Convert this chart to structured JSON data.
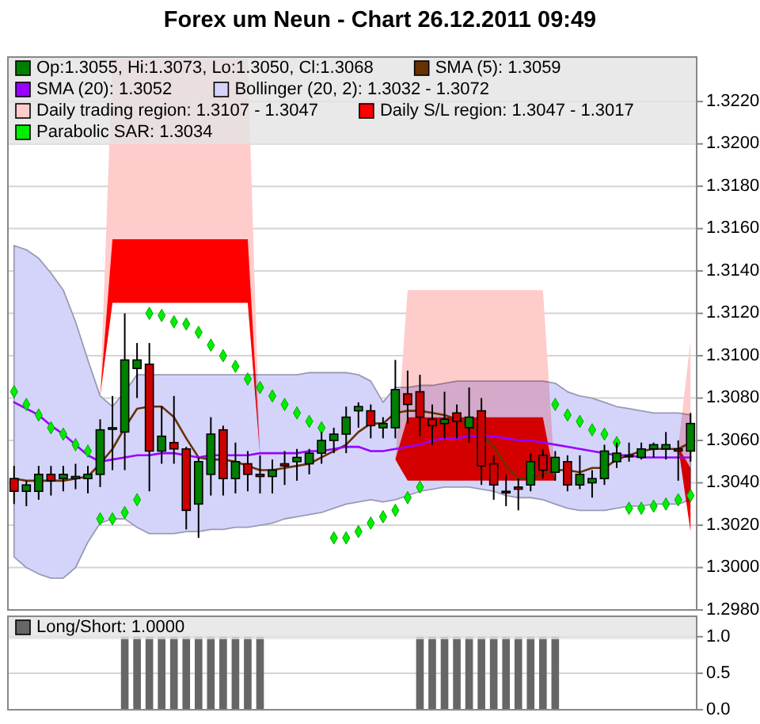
{
  "chart_data": [
    {
      "type": "candlestick",
      "title": "Forex um Neun - Chart 26.12.2011 09:49",
      "categories": [
        null,
        null,
        null,
        null,
        null,
        null,
        null,
        null,
        null,
        null,
        null,
        null,
        null,
        null,
        null,
        null,
        null,
        null,
        null,
        null,
        null,
        null,
        null,
        null,
        null,
        null,
        null,
        null,
        null,
        null,
        null,
        null,
        null,
        null,
        null,
        null,
        null,
        null,
        null,
        null,
        null,
        null,
        null,
        null,
        null,
        null,
        null,
        null,
        null,
        null,
        null,
        null,
        null,
        null,
        null,
        null
      ],
      "ylim": [
        1.298,
        1.3241
      ],
      "yticks": [
        {
          "value": 1.298,
          "label": "1.2980"
        },
        {
          "value": 1.3,
          "label": "1.3000"
        },
        {
          "value": 1.302,
          "label": "1.3020"
        },
        {
          "value": 1.304,
          "label": "1.3040"
        },
        {
          "value": 1.306,
          "label": "1.3060"
        },
        {
          "value": 1.308,
          "label": "1.3080"
        },
        {
          "value": 1.31,
          "label": "1.3100"
        },
        {
          "value": 1.312,
          "label": "1.3120"
        },
        {
          "value": 1.314,
          "label": "1.3140"
        },
        {
          "value": 1.316,
          "label": "1.3160"
        },
        {
          "value": 1.318,
          "label": "1.3180"
        },
        {
          "value": 1.32,
          "label": "1.3200"
        },
        {
          "value": 1.322,
          "label": "1.3220"
        }
      ],
      "grid": "y",
      "legend": "top left",
      "series": [
        {
          "name": "Op:1.3055, Hi:1.3073, Lo:1.3050, Cl:1.3068",
          "color": "#008000",
          "ohlc": [
            [
              1.3042,
              1.3048,
              1.303,
              1.3036
            ],
            [
              1.3036,
              1.3041,
              1.3029,
              1.3039
            ],
            [
              1.3036,
              1.3048,
              1.3032,
              1.3044
            ],
            [
              1.3044,
              1.3048,
              1.3034,
              1.3041
            ],
            [
              1.3042,
              1.3048,
              1.3036,
              1.3044
            ],
            [
              1.3042,
              1.3049,
              1.3037,
              1.3043
            ],
            [
              1.3042,
              1.3048,
              1.3035,
              1.3044
            ],
            [
              1.3044,
              1.307,
              1.3038,
              1.3065
            ],
            [
              1.3066,
              1.3081,
              1.3046,
              1.3066
            ],
            [
              1.3064,
              1.312,
              1.3046,
              1.3098
            ],
            [
              1.3094,
              1.3106,
              1.308,
              1.3098
            ],
            [
              1.3096,
              1.3106,
              1.3036,
              1.3055
            ],
            [
              1.3055,
              1.3076,
              1.3049,
              1.3062
            ],
            [
              1.3059,
              1.3081,
              1.3049,
              1.3056
            ],
            [
              1.3056,
              1.3057,
              1.3018,
              1.3027
            ],
            [
              1.303,
              1.3052,
              1.3014,
              1.305
            ],
            [
              1.3044,
              1.3071,
              1.3034,
              1.3063
            ],
            [
              1.3065,
              1.3067,
              1.3034,
              1.3042
            ],
            [
              1.3042,
              1.3059,
              1.3035,
              1.305
            ],
            [
              1.3049,
              1.3055,
              1.3036,
              1.3044
            ],
            [
              1.3044,
              1.3053,
              1.3035,
              1.3043
            ],
            [
              1.3043,
              1.3051,
              1.3035,
              1.3046
            ],
            [
              1.3049,
              1.3055,
              1.3039,
              1.3048
            ],
            [
              1.305,
              1.3056,
              1.3041,
              1.3052
            ],
            [
              1.3049,
              1.3056,
              1.3044,
              1.3054
            ],
            [
              1.3054,
              1.3064,
              1.3049,
              1.306
            ],
            [
              1.306,
              1.3066,
              1.3054,
              1.3063
            ],
            [
              1.3063,
              1.3076,
              1.3054,
              1.3071
            ],
            [
              1.3074,
              1.3078,
              1.3066,
              1.3076
            ],
            [
              1.3074,
              1.3077,
              1.3061,
              1.3067
            ],
            [
              1.3066,
              1.3071,
              1.3061,
              1.3068
            ],
            [
              1.3066,
              1.3098,
              1.3061,
              1.3084
            ],
            [
              1.3082,
              1.3093,
              1.3068,
              1.3077
            ],
            [
              1.3083,
              1.3091,
              1.3062,
              1.3071
            ],
            [
              1.307,
              1.3077,
              1.3058,
              1.3067
            ],
            [
              1.3068,
              1.3083,
              1.3061,
              1.307
            ],
            [
              1.3073,
              1.3077,
              1.3061,
              1.3069
            ],
            [
              1.3066,
              1.3085,
              1.3059,
              1.3071
            ],
            [
              1.3074,
              1.308,
              1.3039,
              1.3048
            ],
            [
              1.3049,
              1.3053,
              1.3032,
              1.3039
            ],
            [
              1.3036,
              1.3044,
              1.3029,
              1.3036
            ],
            [
              1.3038,
              1.3042,
              1.3027,
              1.3037
            ],
            [
              1.3039,
              1.3054,
              1.3036,
              1.305
            ],
            [
              1.3053,
              1.3056,
              1.3042,
              1.3046
            ],
            [
              1.3045,
              1.3055,
              1.3041,
              1.3052
            ],
            [
              1.305,
              1.3053,
              1.3036,
              1.3039
            ],
            [
              1.3039,
              1.3053,
              1.3037,
              1.3044
            ],
            [
              1.304,
              1.3046,
              1.3033,
              1.3042
            ],
            [
              1.3042,
              1.3058,
              1.3039,
              1.3055
            ],
            [
              1.305,
              1.3059,
              1.3047,
              1.3054
            ],
            [
              1.3053,
              1.3059,
              1.305,
              1.3053
            ],
            [
              1.3052,
              1.3059,
              1.3051,
              1.3056
            ],
            [
              1.3056,
              1.3059,
              1.3052,
              1.3058
            ],
            [
              1.3056,
              1.3064,
              1.3051,
              1.3058
            ],
            [
              1.3056,
              1.306,
              1.3041,
              1.3055
            ],
            [
              1.3055,
              1.3073,
              1.305,
              1.3068
            ]
          ],
          "colors": [
            "#cc0000",
            "#008000",
            "#008000",
            "#cc0000",
            "#008000",
            "#008000",
            "#008000",
            "#008000",
            "#008000",
            "#008000",
            "#008000",
            "#cc0000",
            "#008000",
            "#cc0000",
            "#cc0000",
            "#008000",
            "#008000",
            "#cc0000",
            "#008000",
            "#cc0000",
            "#cc0000",
            "#008000",
            "#cc0000",
            "#008000",
            "#008000",
            "#008000",
            "#008000",
            "#008000",
            "#008000",
            "#cc0000",
            "#008000",
            "#008000",
            "#cc0000",
            "#cc0000",
            "#cc0000",
            "#008000",
            "#cc0000",
            "#008000",
            "#cc0000",
            "#cc0000",
            "#cc0000",
            "#cc0000",
            "#008000",
            "#cc0000",
            "#008000",
            "#cc0000",
            "#008000",
            "#008000",
            "#008000",
            "#008000",
            "#008000",
            "#008000",
            "#008000",
            "#008000",
            "#cc0000",
            "#008000"
          ]
        },
        {
          "type": "line",
          "name": "SMA (5): 1.3059",
          "color": "#663300",
          "values": [
            1.3042,
            1.3041,
            1.3041,
            1.3041,
            1.3041,
            1.3042,
            1.3043,
            1.3049,
            1.3056,
            1.3066,
            1.3075,
            1.3076,
            1.3076,
            1.3071,
            1.3061,
            1.3052,
            1.3051,
            1.3051,
            1.305,
            1.3048,
            1.3046,
            1.3046,
            1.3047,
            1.3048,
            1.3049,
            1.3052,
            1.3055,
            1.3058,
            1.3064,
            1.3068,
            1.3068,
            1.3073,
            1.3074,
            1.3074,
            1.3073,
            1.3072,
            1.307,
            1.3068,
            1.3063,
            1.3057,
            1.3048,
            1.3042,
            1.3042,
            1.3044,
            1.3046,
            1.3046,
            1.3045,
            1.3047,
            1.3047,
            1.3051,
            1.3053,
            1.3055,
            1.3056,
            1.3056,
            1.3056,
            1.3059
          ]
        },
        {
          "type": "line",
          "name": "SMA (20): 1.3052",
          "color": "#9900ff",
          "values": [
            1.3078,
            1.3075,
            1.3072,
            1.3067,
            1.3063,
            1.3058,
            1.3053,
            1.305,
            1.3051,
            1.3052,
            1.3053,
            1.3053,
            1.3054,
            1.3054,
            1.3053,
            1.3052,
            1.3053,
            1.3053,
            1.3053,
            1.3053,
            1.3054,
            1.3054,
            1.3054,
            1.3054,
            1.3055,
            1.3055,
            1.3056,
            1.3057,
            1.3057,
            1.3055,
            1.3055,
            1.3056,
            1.3057,
            1.3058,
            1.306,
            1.3061,
            1.3061,
            1.3062,
            1.3062,
            1.3062,
            1.3061,
            1.306,
            1.306,
            1.3059,
            1.3058,
            1.3057,
            1.3056,
            1.3055,
            1.3054,
            1.3053,
            1.3053,
            1.3052,
            1.3052,
            1.3052,
            1.3052,
            1.3052
          ]
        },
        {
          "type": "area",
          "name": "Bollinger (20, 2): 1.3032 - 1.3072",
          "color": "#d4d4fb",
          "line_style": "solid",
          "values": [
            null,
            null,
            null,
            null,
            null,
            null,
            null,
            null,
            null,
            null,
            null,
            null,
            null,
            null,
            null,
            null,
            null,
            null,
            null,
            null,
            null,
            null,
            null,
            null,
            null,
            null,
            null,
            null,
            null,
            null,
            null,
            null,
            null,
            null,
            null,
            null,
            null,
            null,
            null,
            null,
            null,
            null,
            null,
            null,
            null,
            null,
            null,
            null,
            null,
            null,
            null,
            null,
            null,
            null,
            null,
            null
          ],
          "upper": [
            1.3152,
            1.315,
            1.3146,
            1.3139,
            1.3131,
            1.3116,
            1.3098,
            1.3081,
            1.3076,
            1.3083,
            1.3091,
            1.3091,
            1.3091,
            1.3091,
            1.3091,
            1.3091,
            1.3091,
            1.3091,
            1.3091,
            1.3091,
            1.3091,
            1.3091,
            1.3091,
            1.3091,
            1.3092,
            1.3092,
            1.3092,
            1.3092,
            1.3091,
            1.3088,
            1.3078,
            1.3085,
            1.3085,
            1.3086,
            1.3086,
            1.3087,
            1.3088,
            1.3088,
            1.3088,
            1.3088,
            1.3088,
            1.3088,
            1.3088,
            1.3088,
            1.3087,
            1.3083,
            1.3081,
            1.308,
            1.3078,
            1.3076,
            1.3075,
            1.3074,
            1.3073,
            1.3073,
            1.3073,
            1.3072
          ],
          "lower": [
            1.3005,
            1.3,
            1.2997,
            1.2995,
            1.2995,
            1.3,
            1.3012,
            1.3021,
            1.3023,
            1.3023,
            1.3019,
            1.3016,
            1.3016,
            1.3016,
            1.3017,
            1.3017,
            1.3018,
            1.3018,
            1.3019,
            1.3019,
            1.302,
            1.3021,
            1.3023,
            1.3024,
            1.3025,
            1.3026,
            1.3028,
            1.303,
            1.3031,
            1.3032,
            1.3031,
            1.3032,
            1.3034,
            1.3036,
            1.3037,
            1.3038,
            1.3038,
            1.3038,
            1.3037,
            1.3036,
            1.3034,
            1.3033,
            1.3033,
            1.3032,
            1.303,
            1.3028,
            1.3027,
            1.3027,
            1.3027,
            1.3028,
            1.3029,
            1.3029,
            1.303,
            1.303,
            1.303,
            1.3032
          ]
        },
        {
          "type": "area",
          "name": "Daily trading region: 1.3107 - 1.3047",
          "color": "#ffcccc",
          "values": [
            null,
            null,
            null,
            null,
            null,
            null,
            null,
            null,
            null,
            null,
            null,
            null,
            null,
            null,
            null,
            null,
            null,
            null,
            null,
            null,
            null,
            null,
            null,
            null,
            null,
            null,
            null,
            null,
            null,
            null,
            null,
            null,
            null,
            null,
            null,
            null,
            null,
            null,
            null,
            null,
            null,
            null,
            null,
            null,
            null,
            null,
            null,
            null,
            null,
            null,
            null,
            null,
            null,
            null,
            null,
            null
          ],
          "upper": [
            null,
            null,
            null,
            null,
            null,
            null,
            null,
            1.3081,
            1.324,
            1.324,
            1.324,
            1.324,
            1.324,
            1.324,
            1.324,
            1.324,
            1.324,
            1.324,
            1.324,
            1.324,
            1.3053,
            null,
            null,
            null,
            null,
            null,
            null,
            null,
            null,
            null,
            null,
            1.3051,
            1.3131,
            1.3131,
            1.3131,
            1.3131,
            1.3131,
            1.3131,
            1.3131,
            1.3131,
            1.3131,
            1.3131,
            1.3131,
            1.3131,
            1.3041,
            null,
            null,
            null,
            null,
            null,
            null,
            null,
            null,
            null,
            1.3057,
            1.3107
          ],
          "lower": [
            null,
            null,
            null,
            null,
            null,
            null,
            null,
            1.3081,
            1.3125,
            1.3125,
            1.3125,
            1.3125,
            1.3125,
            1.3125,
            1.3125,
            1.3125,
            1.3125,
            1.3125,
            1.3125,
            1.3125,
            1.3053,
            null,
            null,
            null,
            null,
            null,
            null,
            null,
            null,
            null,
            null,
            1.3051,
            1.3071,
            1.3071,
            1.3071,
            1.3071,
            1.3071,
            1.3071,
            1.3071,
            1.3071,
            1.3071,
            1.3071,
            1.3071,
            1.3071,
            1.3041,
            null,
            null,
            null,
            null,
            null,
            null,
            null,
            null,
            null,
            1.3057,
            1.3047
          ]
        },
        {
          "type": "area",
          "name": "Daily S/L region: 1.3047 - 1.3017",
          "color": "#ff0000",
          "values": [
            null,
            null,
            null,
            null,
            null,
            null,
            null,
            null,
            null,
            null,
            null,
            null,
            null,
            null,
            null,
            null,
            null,
            null,
            null,
            null,
            null,
            null,
            null,
            null,
            null,
            null,
            null,
            null,
            null,
            null,
            null,
            null,
            null,
            null,
            null,
            null,
            null,
            null,
            null,
            null,
            null,
            null,
            null,
            null,
            null,
            null,
            null,
            null,
            null,
            null,
            null,
            null,
            null,
            null,
            null,
            null
          ],
          "upper": [
            null,
            null,
            null,
            null,
            null,
            null,
            null,
            1.3081,
            1.3155,
            1.3155,
            1.3155,
            1.3155,
            1.3155,
            1.3155,
            1.3155,
            1.3155,
            1.3155,
            1.3155,
            1.3155,
            1.3155,
            1.3053,
            null,
            null,
            null,
            null,
            null,
            null,
            null,
            null,
            null,
            null,
            1.3051,
            1.3071,
            1.3071,
            1.3071,
            1.3071,
            1.3071,
            1.3071,
            1.3071,
            1.3071,
            1.3071,
            1.3071,
            1.3071,
            1.3071,
            1.3041,
            null,
            null,
            null,
            null,
            null,
            null,
            null,
            null,
            null,
            1.3057,
            1.3047
          ],
          "lower": [
            null,
            null,
            null,
            null,
            null,
            null,
            null,
            1.3081,
            1.3125,
            1.3125,
            1.3125,
            1.3125,
            1.3125,
            1.3125,
            1.3125,
            1.3125,
            1.3125,
            1.3125,
            1.3125,
            1.3125,
            1.3053,
            null,
            null,
            null,
            null,
            null,
            null,
            null,
            null,
            null,
            null,
            1.3051,
            1.3041,
            1.3041,
            1.3041,
            1.3041,
            1.3041,
            1.3041,
            1.3041,
            1.3041,
            1.3041,
            1.3041,
            1.3041,
            1.3041,
            1.3041,
            null,
            null,
            null,
            null,
            null,
            null,
            null,
            null,
            null,
            1.3057,
            1.3017
          ]
        },
        {
          "type": "scatter",
          "name": "Parabolic SAR: 1.3034",
          "color": "#00ee00",
          "marker": "diamond",
          "values": [
            1.3083,
            1.3077,
            1.3072,
            1.3066,
            1.3063,
            1.3058,
            1.3055,
            1.3023,
            1.3023,
            1.3026,
            1.3032,
            1.312,
            1.3119,
            1.3116,
            1.3115,
            1.3111,
            1.3105,
            1.31,
            1.3095,
            1.3089,
            1.3085,
            1.3081,
            1.3077,
            1.3073,
            1.3069,
            1.3066,
            1.3014,
            1.3014,
            1.3017,
            1.3021,
            1.3024,
            1.3027,
            1.3033,
            1.3038,
            null,
            null,
            null,
            null,
            null,
            null,
            null,
            null,
            null,
            null,
            1.3077,
            1.3072,
            1.3069,
            1.3065,
            1.3063,
            1.3059,
            1.3028,
            1.3028,
            1.3029,
            1.303,
            1.3032,
            1.3034
          ]
        }
      ]
    },
    {
      "type": "bar",
      "categories": [
        null,
        null,
        null,
        null,
        null,
        null,
        null,
        null,
        null,
        null,
        null,
        null,
        null,
        null,
        null,
        null,
        null,
        null,
        null,
        null,
        null,
        null,
        null,
        null,
        null,
        null,
        null,
        null,
        null,
        null,
        null,
        null,
        null,
        null,
        null,
        null,
        null,
        null,
        null,
        null,
        null,
        null,
        null,
        null,
        null,
        null,
        null,
        null,
        null,
        null,
        null,
        null,
        null,
        null,
        null,
        null
      ],
      "ylim": [
        0,
        1.28
      ],
      "yticks": [
        {
          "value": 0,
          "label": "0.0"
        },
        {
          "value": 0.5,
          "label": "0.5"
        },
        {
          "value": 1,
          "label": "1.0"
        }
      ],
      "grid": "y",
      "legend": "top left",
      "series": [
        {
          "name": "Long/Short: 1.0000",
          "color": "#666666",
          "values": [
            0,
            0,
            0,
            0,
            0,
            0,
            0,
            0,
            0,
            1,
            1,
            1,
            1,
            1,
            1,
            1,
            1,
            1,
            1,
            1,
            1,
            0,
            0,
            0,
            0,
            0,
            0,
            0,
            0,
            0,
            0,
            0,
            0,
            1,
            1,
            1,
            1,
            1,
            1,
            1,
            1,
            1,
            1,
            1,
            1,
            0,
            0,
            0,
            0,
            0,
            0,
            0,
            0,
            0,
            0,
            0
          ]
        }
      ]
    }
  ]
}
